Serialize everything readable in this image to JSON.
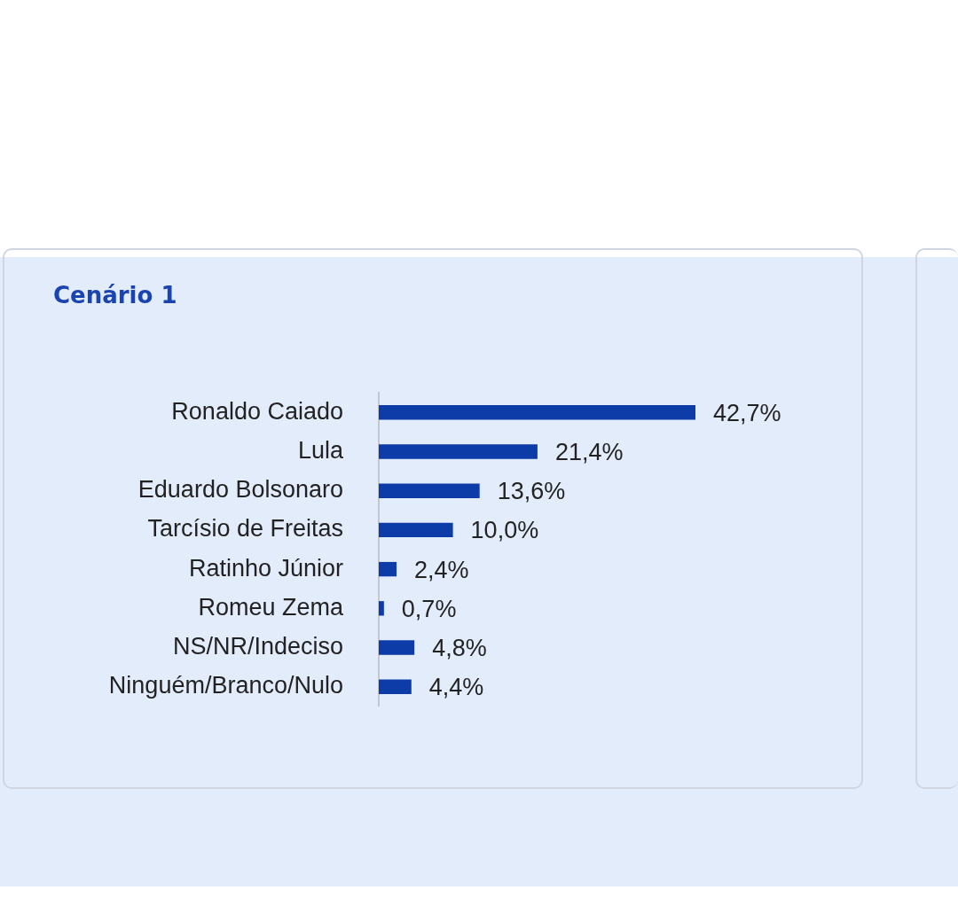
{
  "chart_data": {
    "type": "bar",
    "orientation": "horizontal",
    "title": "Cenário 1",
    "categories": [
      "Ronaldo Caiado",
      "Lula",
      "Eduardo Bolsonaro",
      "Tarcísio de Freitas",
      "Ratinho Júnior",
      "Romeu Zema",
      "NS/NR/Indeciso",
      "Ninguém/Branco/Nulo"
    ],
    "values": [
      42.7,
      21.4,
      13.6,
      10.0,
      2.4,
      0.7,
      4.8,
      4.4
    ],
    "value_labels": [
      "42,7%",
      "21,4%",
      "13,6%",
      "10,0%",
      "2,4%",
      "0,7%",
      "4,8%",
      "4,4%"
    ],
    "color": "#0d3ca8",
    "tick_labels": "y"
  }
}
